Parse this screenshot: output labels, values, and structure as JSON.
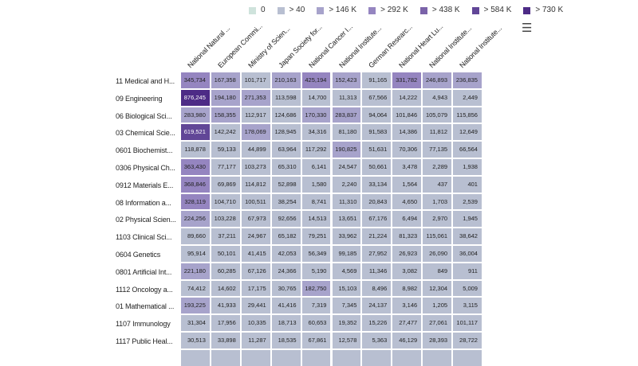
{
  "chart_data": {
    "type": "heatmap",
    "columns": [
      "National Natural ...",
      "European Commi...",
      "Ministry of Scien...",
      "Japan Society for...",
      "National Cancer I...",
      "National Institute...",
      "German Researc...",
      "National Heart Lu...",
      "National Institute...",
      "National Institute..."
    ],
    "rows": [
      "11 Medical and H...",
      "09 Engineering",
      "06 Biological Sci...",
      "03 Chemical Scie...",
      "0601 Biochemist...",
      "0306 Physical Ch...",
      "0912 Materials E...",
      "08 Information a...",
      "02 Physical Scien...",
      "1103 Clinical Sci...",
      "0604 Genetics",
      "0801 Artificial Int...",
      "1112 Oncology a...",
      "01 Mathematical ...",
      "1107 Immunology",
      "1117 Public Heal..."
    ],
    "values": [
      [
        345734,
        167358,
        101717,
        210163,
        425194,
        152423,
        91165,
        331782,
        246893,
        236835
      ],
      [
        876245,
        194180,
        271353,
        113598,
        14700,
        11313,
        67566,
        14222,
        4943,
        2449
      ],
      [
        283980,
        158355,
        112917,
        124686,
        170330,
        283837,
        94064,
        101846,
        105079,
        115856
      ],
      [
        619521,
        142242,
        178069,
        128945,
        34316,
        81180,
        91583,
        14386,
        11812,
        12649
      ],
      [
        118878,
        59133,
        44899,
        63964,
        117292,
        190825,
        51631,
        70306,
        77135,
        66564
      ],
      [
        363430,
        77177,
        103273,
        65310,
        6141,
        24547,
        50661,
        3478,
        2289,
        1938
      ],
      [
        368846,
        69869,
        114812,
        52898,
        1580,
        2240,
        33134,
        1564,
        437,
        401
      ],
      [
        328119,
        104710,
        100511,
        38254,
        8741,
        11310,
        20843,
        4650,
        1703,
        2539
      ],
      [
        224256,
        103228,
        67973,
        92656,
        14513,
        13651,
        67176,
        6494,
        2970,
        1945
      ],
      [
        89660,
        37211,
        24967,
        65182,
        79251,
        33962,
        21224,
        81323,
        115061,
        38642
      ],
      [
        95914,
        50101,
        41415,
        42053,
        56349,
        99185,
        27952,
        26923,
        26090,
        36004
      ],
      [
        221180,
        60285,
        67126,
        24366,
        5190,
        4569,
        11346,
        3082,
        849,
        911
      ],
      [
        74412,
        14602,
        17175,
        30765,
        182750,
        15103,
        8496,
        8982,
        12304,
        5009
      ],
      [
        193225,
        41933,
        29441,
        41416,
        7319,
        7345,
        24137,
        3146,
        1205,
        3115
      ],
      [
        31304,
        17956,
        10335,
        18713,
        60653,
        19352,
        15226,
        27477,
        27061,
        101117
      ],
      [
        30513,
        33898,
        11287,
        18535,
        67861,
        12578,
        5363,
        46129,
        28393,
        28722
      ]
    ],
    "legend": [
      {
        "label": "0",
        "min": 0,
        "color": "#cfe3dc"
      },
      {
        "label": "> 40",
        "min": 40,
        "color": "#b8bfd1"
      },
      {
        "label": "> 146 K",
        "min": 146000,
        "color": "#a7a3cb"
      },
      {
        "label": "> 292 K",
        "min": 292000,
        "color": "#9585c0"
      },
      {
        "label": "> 438 K",
        "min": 438000,
        "color": "#7b63a9"
      },
      {
        "label": "> 584 K",
        "min": 584000,
        "color": "#614697"
      },
      {
        "label": "> 730 K",
        "min": 730000,
        "color": "#4d2b86"
      }
    ],
    "legend_position": "top-right"
  },
  "menu_icon": "hamburger-menu-icon"
}
